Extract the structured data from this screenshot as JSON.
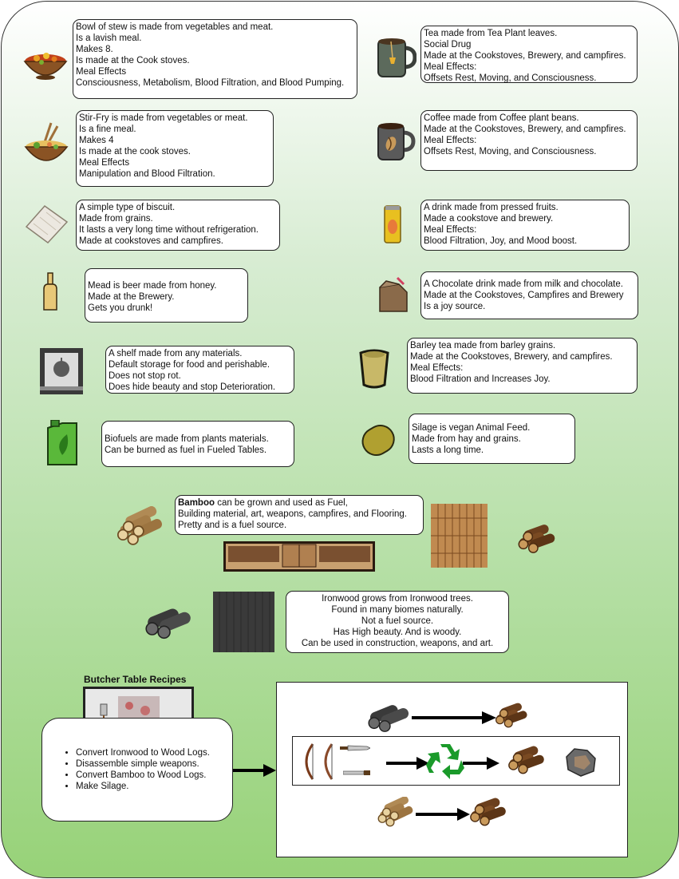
{
  "colors": {
    "panel_bg_top": "#ffffff",
    "panel_bg_bottom": "#97d278",
    "box_border": "#222222"
  },
  "items": {
    "stew": {
      "icon": "stew-bowl-icon",
      "lines": [
        "Bowl of stew is made from vegetables and meat.",
        "Is a lavish meal.",
        "Makes 8.",
        "Is made at the Cook stoves.",
        "Meal Effects",
        "Consciousness, Metabolism, Blood Filtration, and Blood Pumping."
      ]
    },
    "tea": {
      "icon": "tea-mug-icon",
      "lines": [
        "Tea made from Tea Plant leaves.",
        "Social Drug",
        "Made at the Cookstoves, Brewery, and campfires.",
        "Meal Effects:",
        "Offsets Rest, Moving, and Consciousness."
      ]
    },
    "stirfry": {
      "icon": "stir-fry-bowl-icon",
      "lines": [
        "Stir-Fry is made from vegetables or meat.",
        "Is a fine meal.",
        "Makes 4",
        "Is made at the cook stoves.",
        "Meal Effects",
        "Manipulation and Blood Filtration."
      ]
    },
    "coffee": {
      "icon": "coffee-mug-icon",
      "lines": [
        "Coffee made from Coffee plant beans.",
        "Made at the Cookstoves, Brewery, and campfires.",
        "Meal Effects:",
        "Offsets Rest, Moving, and Consciousness."
      ]
    },
    "biscuit": {
      "icon": "biscuit-icon",
      "lines": [
        "A simple type of biscuit.",
        "Made from grains.",
        "It lasts a very long time without refrigeration.",
        "Made at cookstoves and campfires."
      ]
    },
    "juice": {
      "icon": "juice-can-icon",
      "lines": [
        "A drink made from pressed fruits.",
        "Made a cookstove and brewery.",
        "Meal Effects:",
        "Blood Filtration, Joy, and Mood boost."
      ]
    },
    "mead": {
      "icon": "mead-bottle-icon",
      "lines": [
        "Mead is beer made from honey.",
        "Made at the Brewery.",
        "Gets you drunk!"
      ]
    },
    "chocolate": {
      "icon": "chocolate-milk-carton-icon",
      "lines": [
        "A Chocolate drink made from milk and chocolate.",
        "Made at the Cookstoves, Campfires and Brewery",
        "Is a joy source."
      ]
    },
    "shelf": {
      "icon": "food-shelf-icon",
      "lines": [
        "A shelf made from any materials.",
        "Default storage for food and perishable.",
        "Does not stop rot.",
        "Does hide beauty and stop Deterioration."
      ]
    },
    "barley": {
      "icon": "barley-tea-cup-icon",
      "lines": [
        "Barley tea made from barley grains.",
        "Made at the Cookstoves, Brewery, and campfires.",
        "Meal Effects:",
        "Blood Filtration and Increases Joy."
      ]
    },
    "biofuel": {
      "icon": "fuel-canister-icon",
      "lines": [
        "Biofuels are made from plants materials.",
        "Can be burned as fuel in Fueled Tables."
      ]
    },
    "silage": {
      "icon": "silage-bale-icon",
      "lines": [
        "Silage is vegan Animal Feed.",
        "Made from hay and grains.",
        "Lasts a long time."
      ]
    },
    "bamboo": {
      "icon": "bamboo-bundle-icon",
      "bold": "Bamboo",
      "first_rest": " can be grown and used as Fuel,",
      "lines": [
        "Building material, art, weapons, campfires, and Flooring.",
        "Pretty and is a fuel source."
      ]
    },
    "ironwood": {
      "icon": "ironwood-logs-icon",
      "lines": [
        "Ironwood grows from Ironwood trees.",
        "Found in many biomes naturally.",
        "Not a fuel source.",
        "Has High beauty. And is woody.",
        "Can be used in construction, weapons, and art."
      ]
    }
  },
  "butcher": {
    "title": "Butcher Table Recipes",
    "recipes": [
      "Convert Ironwood to Wood Logs.",
      "Disassemble simple weapons.",
      "Convert Bamboo to Wood Logs.",
      "Make Silage."
    ],
    "icons": [
      "butcher-table-icon",
      "arrow-right-icon",
      "recycle-icon",
      "wood-logs-icon",
      "stone-chunk-icon",
      "bow-icon",
      "knife-icon"
    ]
  }
}
